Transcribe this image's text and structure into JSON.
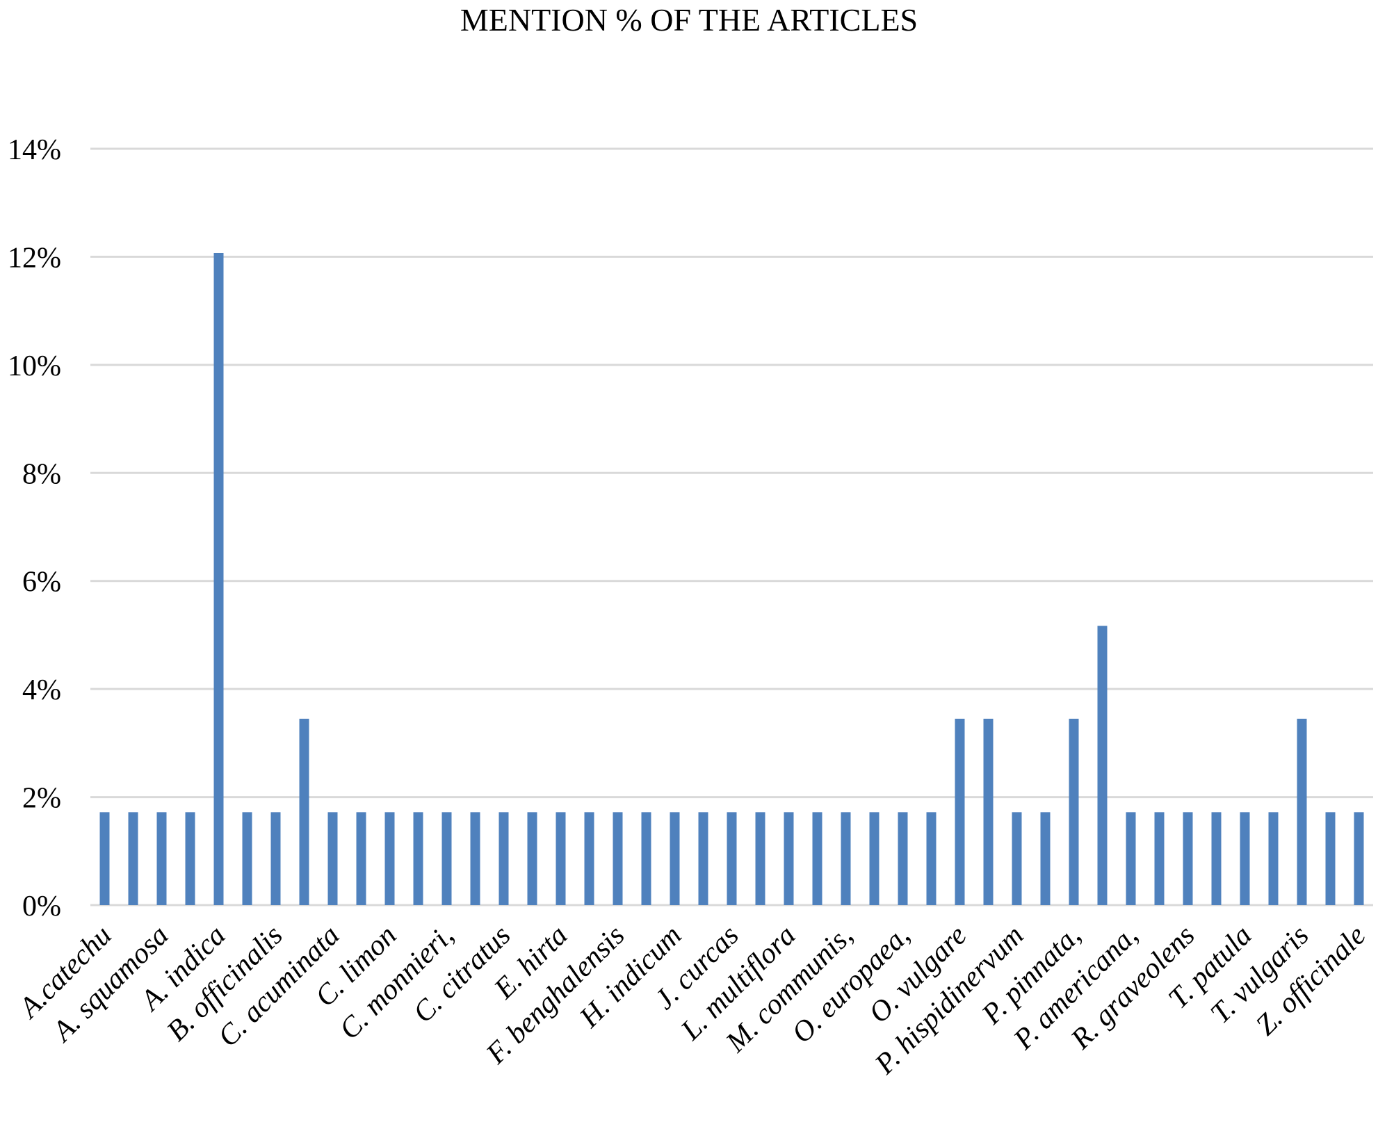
{
  "chart_data": {
    "type": "bar",
    "title": "MENTION % OF THE  ARTICLES",
    "xlabel": "",
    "ylabel": "",
    "ylim": [
      0,
      14
    ],
    "ytick_step": 2,
    "ytick_suffix": "%",
    "grid": true,
    "legend": "none",
    "bar_color": "#4F81BD",
    "grid_color": "#D9D9D9",
    "tick_labels": [
      "A.catechu",
      "A. squamosa",
      "A. indica",
      "B. officinalis",
      "C. acuminata",
      "C. limon",
      "C. monnieri,",
      "C. citratus",
      "E. hirta",
      "F. benghalensis",
      "H. indicum",
      "J. curcas",
      "L. multiflora",
      "M. communis,",
      "O. europaea,",
      "O. vulgare",
      "P. hispidinervum",
      "P. pinnata,",
      "P. americana,",
      "R. graveolens",
      "T. patula",
      "T. vulgaris",
      "Z. officinale"
    ],
    "values": [
      1.72,
      1.72,
      1.72,
      1.72,
      12.07,
      1.72,
      1.72,
      3.45,
      1.72,
      1.72,
      1.72,
      1.72,
      1.72,
      1.72,
      1.72,
      1.72,
      1.72,
      1.72,
      1.72,
      1.72,
      1.72,
      1.72,
      1.72,
      1.72,
      1.72,
      1.72,
      1.72,
      1.72,
      1.72,
      1.72,
      3.45,
      3.45,
      1.72,
      1.72,
      3.45,
      5.17,
      1.72,
      1.72,
      1.72,
      1.72,
      1.72,
      1.72,
      3.45,
      1.72,
      1.72
    ]
  }
}
